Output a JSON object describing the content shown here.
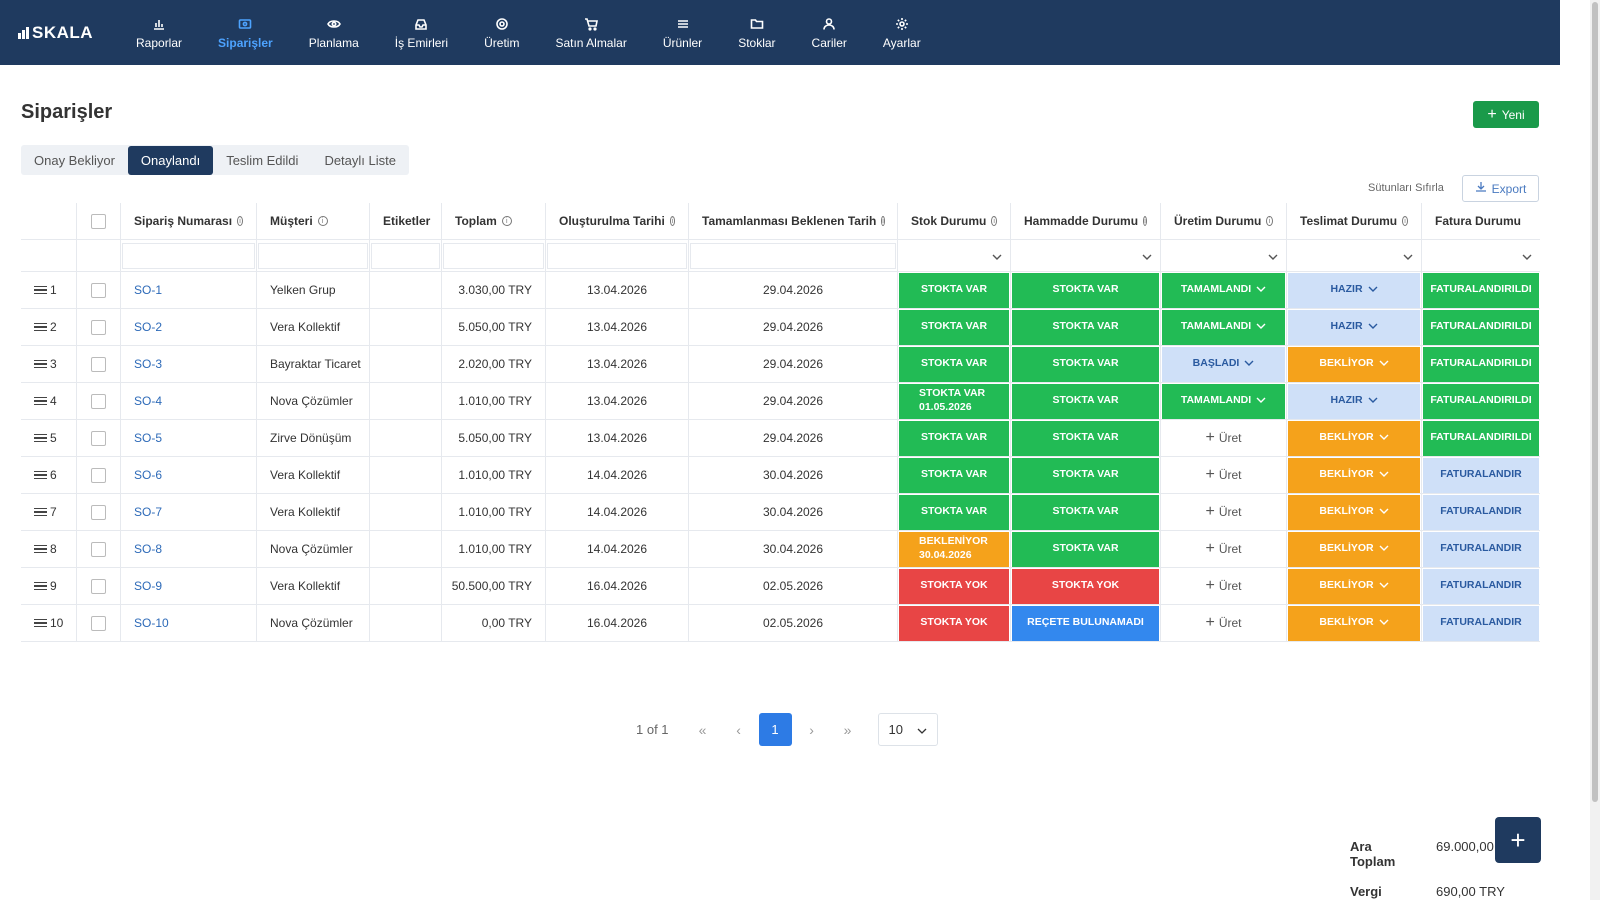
{
  "app": {
    "logo_text": "SKALA"
  },
  "nav": [
    {
      "label": "Raporlar",
      "icon": "chart-icon"
    },
    {
      "label": "Siparişler",
      "icon": "orders-icon",
      "active": true
    },
    {
      "label": "Planlama",
      "icon": "eye-icon"
    },
    {
      "label": "İş Emirleri",
      "icon": "inbox-icon"
    },
    {
      "label": "Üretim",
      "icon": "gear-icon"
    },
    {
      "label": "Satın Almalar",
      "icon": "cart-icon"
    },
    {
      "label": "Ürünler",
      "icon": "list-icon"
    },
    {
      "label": "Stoklar",
      "icon": "folder-icon"
    },
    {
      "label": "Cariler",
      "icon": "user-icon"
    },
    {
      "label": "Ayarlar",
      "icon": "settings-icon"
    }
  ],
  "page": {
    "title": "Siparişler",
    "new_button": "Yeni",
    "reset_columns": "Sütunları Sıfırla",
    "export_button": "Export"
  },
  "tabs": [
    {
      "label": "Onay Bekliyor"
    },
    {
      "label": "Onaylandı",
      "active": true
    },
    {
      "label": "Teslim Edildi"
    },
    {
      "label": "Detaylı Liste"
    }
  ],
  "table": {
    "columns": {
      "order_no": "Sipariş Numarası",
      "customer": "Müşteri",
      "tags": "Etiketler",
      "total": "Toplam",
      "created": "Oluşturulma Tarihi",
      "expected": "Tamamlanması Beklenen Tarih",
      "stock": "Stok Durumu",
      "material": "Hammadde Durumu",
      "production": "Üretim Durumu",
      "delivery": "Teslimat Durumu",
      "invoice": "Fatura Durumu"
    },
    "rows": [
      {
        "n": "1",
        "order": "SO-1",
        "customer": "Yelken Grup",
        "total": "3.030,00 TRY",
        "created": "13.04.2026",
        "expected": "29.04.2026",
        "stock": {
          "text": "STOKTA VAR",
          "color": "green"
        },
        "material": {
          "text": "STOKTA VAR",
          "color": "green"
        },
        "production": {
          "text": "TAMAMLANDI",
          "color": "green"
        },
        "delivery": {
          "text": "HAZIR",
          "color": "lightblue"
        },
        "invoice": {
          "text": "FATURALANDIRILDI",
          "color": "green"
        }
      },
      {
        "n": "2",
        "order": "SO-2",
        "customer": "Vera Kollektif",
        "total": "5.050,00 TRY",
        "created": "13.04.2026",
        "expected": "29.04.2026",
        "stock": {
          "text": "STOKTA VAR",
          "color": "green"
        },
        "material": {
          "text": "STOKTA VAR",
          "color": "green"
        },
        "production": {
          "text": "TAMAMLANDI",
          "color": "green"
        },
        "delivery": {
          "text": "HAZIR",
          "color": "lightblue"
        },
        "invoice": {
          "text": "FATURALANDIRILDI",
          "color": "green"
        }
      },
      {
        "n": "3",
        "order": "SO-3",
        "customer": "Bayraktar Ticaret",
        "total": "2.020,00 TRY",
        "created": "13.04.2026",
        "expected": "29.04.2026",
        "stock": {
          "text": "STOKTA VAR",
          "color": "green"
        },
        "material": {
          "text": "STOKTA VAR",
          "color": "green"
        },
        "production": {
          "text": "BAŞLADI",
          "color": "lightblue"
        },
        "delivery": {
          "text": "BEKLİYOR",
          "color": "orange"
        },
        "invoice": {
          "text": "FATURALANDIRILDI",
          "color": "green"
        }
      },
      {
        "n": "4",
        "order": "SO-4",
        "customer": "Nova Çözümler",
        "total": "1.010,00 TRY",
        "created": "13.04.2026",
        "expected": "29.04.2026",
        "stock": {
          "text": "STOKTA VAR",
          "text2": "01.05.2026",
          "color": "green"
        },
        "material": {
          "text": "STOKTA VAR",
          "color": "green"
        },
        "production": {
          "text": "TAMAMLANDI",
          "color": "green"
        },
        "delivery": {
          "text": "HAZIR",
          "color": "lightblue"
        },
        "invoice": {
          "text": "FATURALANDIRILDI",
          "color": "green"
        }
      },
      {
        "n": "5",
        "order": "SO-5",
        "customer": "Zirve Dönüşüm",
        "total": "5.050,00 TRY",
        "created": "13.04.2026",
        "expected": "29.04.2026",
        "stock": {
          "text": "STOKTA VAR",
          "color": "green"
        },
        "material": {
          "text": "STOKTA VAR",
          "color": "green"
        },
        "production": {
          "text": "Üret",
          "color": "none"
        },
        "delivery": {
          "text": "BEKLİYOR",
          "color": "orange"
        },
        "invoice": {
          "text": "FATURALANDIRILDI",
          "color": "green"
        }
      },
      {
        "n": "6",
        "order": "SO-6",
        "customer": "Vera Kollektif",
        "total": "1.010,00 TRY",
        "created": "14.04.2026",
        "expected": "30.04.2026",
        "stock": {
          "text": "STOKTA VAR",
          "color": "green"
        },
        "material": {
          "text": "STOKTA VAR",
          "color": "green"
        },
        "production": {
          "text": "Üret",
          "color": "none"
        },
        "delivery": {
          "text": "BEKLİYOR",
          "color": "orange"
        },
        "invoice": {
          "text": "FATURALANDIR",
          "color": "lightblue"
        }
      },
      {
        "n": "7",
        "order": "SO-7",
        "customer": "Vera Kollektif",
        "total": "1.010,00 TRY",
        "created": "14.04.2026",
        "expected": "30.04.2026",
        "stock": {
          "text": "STOKTA VAR",
          "color": "green"
        },
        "material": {
          "text": "STOKTA VAR",
          "color": "green"
        },
        "production": {
          "text": "Üret",
          "color": "none"
        },
        "delivery": {
          "text": "BEKLİYOR",
          "color": "orange"
        },
        "invoice": {
          "text": "FATURALANDIR",
          "color": "lightblue"
        }
      },
      {
        "n": "8",
        "order": "SO-8",
        "customer": "Nova Çözümler",
        "total": "1.010,00 TRY",
        "created": "14.04.2026",
        "expected": "30.04.2026",
        "stock": {
          "text": "BEKLENİYOR",
          "text2": "30.04.2026",
          "color": "orange"
        },
        "material": {
          "text": "STOKTA VAR",
          "color": "green"
        },
        "production": {
          "text": "Üret",
          "color": "none"
        },
        "delivery": {
          "text": "BEKLİYOR",
          "color": "orange"
        },
        "invoice": {
          "text": "FATURALANDIR",
          "color": "lightblue"
        }
      },
      {
        "n": "9",
        "order": "SO-9",
        "customer": "Vera Kollektif",
        "total": "50.500,00 TRY",
        "created": "16.04.2026",
        "expected": "02.05.2026",
        "stock": {
          "text": "STOKTA YOK",
          "color": "red"
        },
        "material": {
          "text": "STOKTA YOK",
          "color": "red"
        },
        "production": {
          "text": "Üret",
          "color": "none"
        },
        "delivery": {
          "text": "BEKLİYOR",
          "color": "orange"
        },
        "invoice": {
          "text": "FATURALANDIR",
          "color": "lightblue"
        }
      },
      {
        "n": "10",
        "order": "SO-10",
        "customer": "Nova Çözümler",
        "total": "0,00 TRY",
        "created": "16.04.2026",
        "expected": "02.05.2026",
        "stock": {
          "text": "STOKTA YOK",
          "color": "red"
        },
        "material": {
          "text": "REÇETE BULUNAMADI",
          "color": "blue"
        },
        "production": {
          "text": "Üret",
          "color": "none"
        },
        "delivery": {
          "text": "BEKLİYOR",
          "color": "orange"
        },
        "invoice": {
          "text": "FATURALANDIR",
          "color": "lightblue"
        }
      }
    ]
  },
  "pagination": {
    "info": "1 of 1",
    "current": "1",
    "page_size": "10",
    "first": "«",
    "prev": "‹",
    "next": "›",
    "last": "»"
  },
  "totals": [
    {
      "label": "Ara Toplam",
      "value": "69.000,00 TRY"
    },
    {
      "label": "Vergi",
      "value": "690,00 TRY"
    }
  ],
  "colors": {
    "nav_bg": "#1f3a5f",
    "green": "#22bb55",
    "orange": "#f5a21b",
    "red": "#e84545",
    "blue": "#3388ee",
    "lightblue": "#cfe0f8",
    "primary": "#2d7be5"
  }
}
